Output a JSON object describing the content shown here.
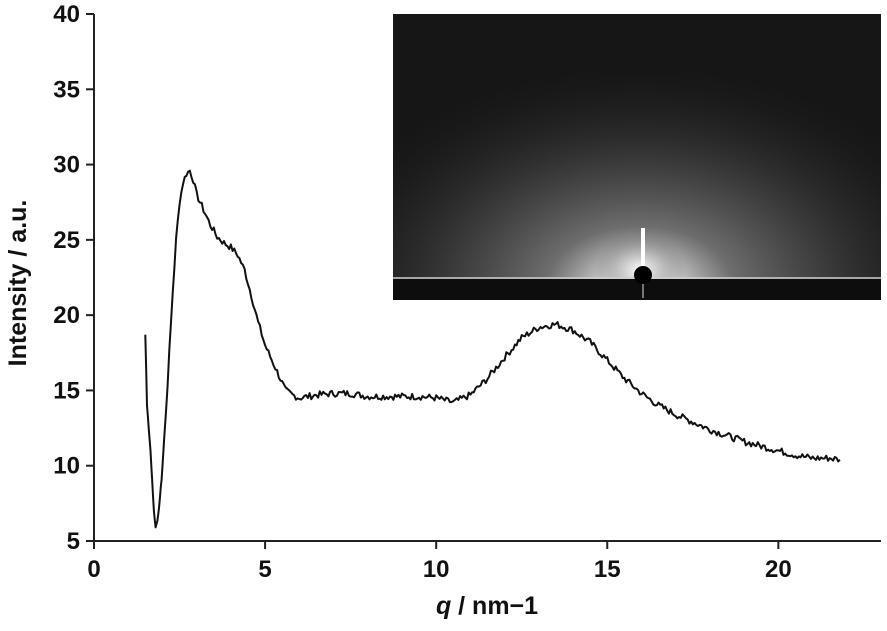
{
  "chart_data": {
    "type": "line",
    "title": "",
    "xlabel": "q / nm−1",
    "xlabel_symbol": "q",
    "xlabel_unit": " / nm−1",
    "ylabel": "Intensity / a.u.",
    "xlim": [
      0,
      23
    ],
    "ylim": [
      5,
      40
    ],
    "xticks": [
      0,
      5,
      10,
      15,
      20
    ],
    "yticks": [
      5,
      10,
      15,
      20,
      25,
      30,
      35,
      40
    ],
    "grid": false,
    "legend": "none",
    "inset": "2D scattering pattern image (grayscale)",
    "series": [
      {
        "x": [
          1.5,
          1.55,
          1.6,
          1.65,
          1.7,
          1.75,
          1.8,
          1.85,
          1.9,
          1.95,
          2.0,
          2.1,
          2.2,
          2.3,
          2.4,
          2.5,
          2.6,
          2.7,
          2.8,
          2.9,
          3.0,
          3.2,
          3.4,
          3.6,
          3.8,
          4.0,
          4.2,
          4.4,
          4.6,
          4.8,
          5.0,
          5.2,
          5.4,
          5.6,
          5.8,
          6.0,
          6.5,
          7.0,
          7.5,
          8.0,
          8.5,
          9.0,
          9.5,
          10.0,
          10.5,
          11.0,
          11.5,
          12.0,
          12.5,
          13.0,
          13.5,
          14.0,
          14.5,
          15.0,
          15.5,
          16.0,
          16.5,
          17.0,
          17.5,
          18.0,
          18.5,
          19.0,
          19.5,
          20.0,
          20.5,
          21.0,
          21.5,
          21.8
        ],
        "y": [
          18.7,
          14.0,
          12.5,
          11.0,
          9.0,
          7.0,
          5.9,
          6.3,
          7.2,
          8.5,
          10.0,
          13.5,
          17.5,
          21.5,
          25.0,
          27.5,
          28.8,
          29.4,
          29.6,
          29.0,
          28.0,
          27.0,
          26.0,
          25.2,
          24.8,
          24.5,
          24.0,
          23.0,
          21.3,
          19.5,
          18.0,
          17.0,
          16.0,
          15.0,
          14.7,
          14.5,
          14.7,
          14.8,
          14.8,
          14.6,
          14.6,
          14.6,
          14.6,
          14.5,
          14.2,
          14.7,
          15.8,
          17.2,
          18.5,
          19.2,
          19.4,
          19.0,
          18.2,
          17.0,
          15.8,
          14.8,
          14.0,
          13.4,
          12.9,
          12.4,
          12.0,
          11.6,
          11.3,
          11.0,
          10.7,
          10.5,
          10.5,
          10.4
        ]
      }
    ]
  }
}
